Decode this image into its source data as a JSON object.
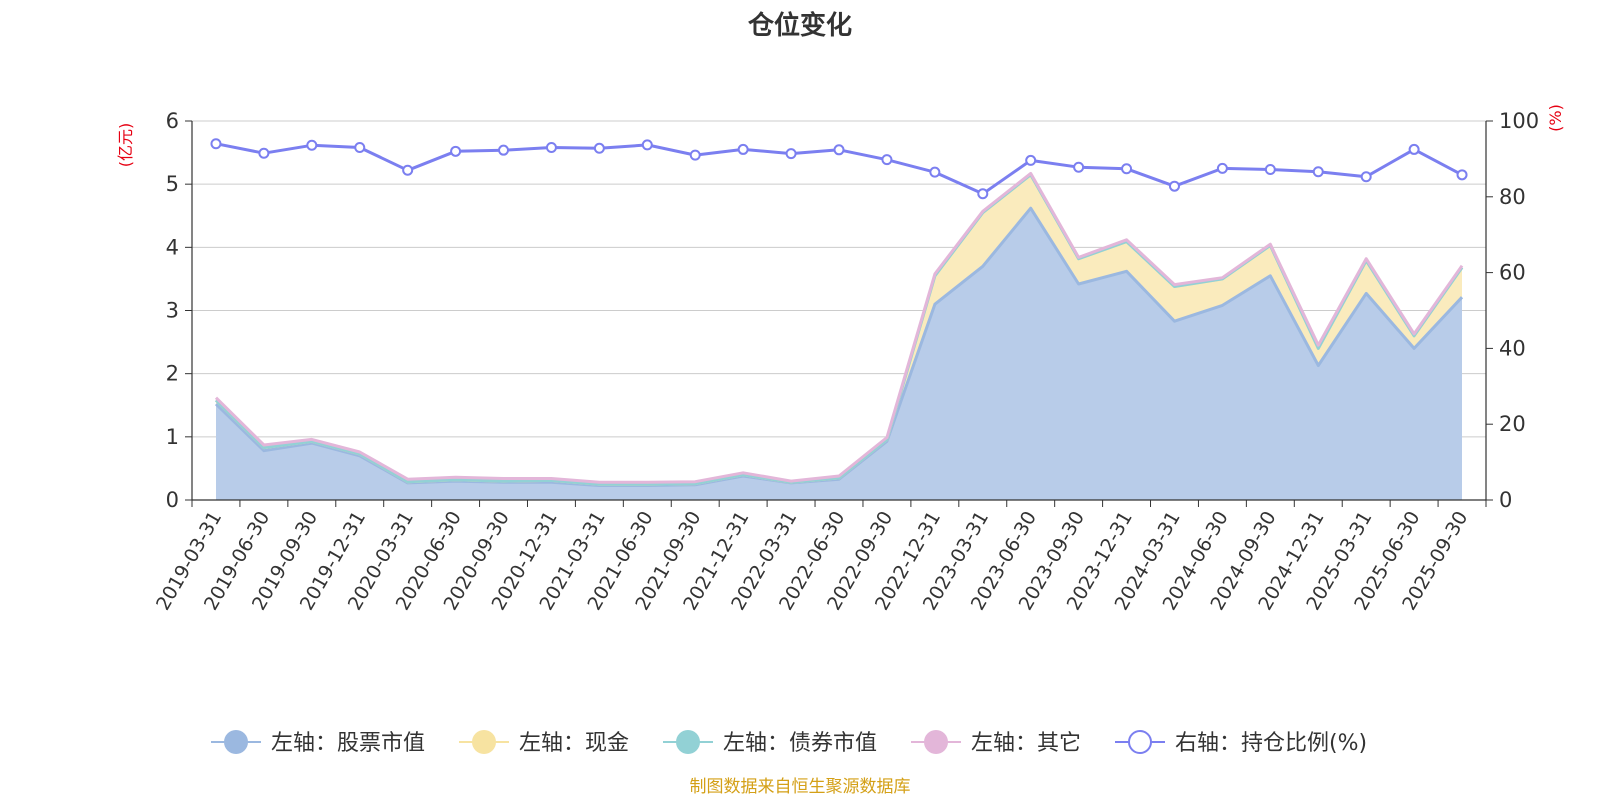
{
  "chart_data": {
    "type": "area",
    "title": "仓位变化",
    "left_axis_unit": "(亿元)",
    "right_axis_unit": "(%)",
    "ylim_left": [
      0,
      6
    ],
    "ylim_right": [
      0,
      100
    ],
    "left_ticks": [
      "0",
      "1",
      "2",
      "3",
      "4",
      "5",
      "6"
    ],
    "right_ticks": [
      "0",
      "20",
      "40",
      "60",
      "80",
      "100"
    ],
    "grid": true,
    "categories": [
      "2019-03-31",
      "2019-06-30",
      "2019-09-30",
      "2019-12-31",
      "2020-03-31",
      "2020-06-30",
      "2020-09-30",
      "2020-12-31",
      "2021-03-31",
      "2021-06-30",
      "2021-09-30",
      "2021-12-31",
      "2022-03-31",
      "2022-06-30",
      "2022-09-30",
      "2022-12-31",
      "2023-03-31",
      "2023-06-30",
      "2023-09-30",
      "2023-12-31",
      "2024-03-31",
      "2024-06-30",
      "2024-09-30",
      "2024-12-31",
      "2025-03-31",
      "2025-06-30",
      "2025-09-30"
    ],
    "series": [
      {
        "name": "左轴：股票市值",
        "axis": "left",
        "stacked": true,
        "color": "#9bb8e0",
        "fill": "#b8cce9",
        "values": [
          1.52,
          0.78,
          0.9,
          0.7,
          0.27,
          0.3,
          0.28,
          0.28,
          0.23,
          0.23,
          0.24,
          0.38,
          0.27,
          0.33,
          0.93,
          3.1,
          3.7,
          4.62,
          3.42,
          3.62,
          2.83,
          3.08,
          3.55,
          2.13,
          3.27,
          2.4,
          3.21
        ]
      },
      {
        "name": "左轴：现金",
        "axis": "left",
        "stacked": true,
        "color": "#f7e3a1",
        "fill": "#faebbd",
        "values": [
          0.06,
          0.05,
          0.03,
          0.03,
          0.02,
          0.02,
          0.02,
          0.03,
          0.02,
          0.02,
          0.02,
          0.02,
          0.01,
          0.02,
          0.03,
          0.45,
          0.85,
          0.53,
          0.4,
          0.47,
          0.55,
          0.42,
          0.48,
          0.27,
          0.52,
          0.2,
          0.47
        ]
      },
      {
        "name": "左轴：债券市值",
        "axis": "left",
        "stacked": true,
        "color": "#92d1d5",
        "fill": "#c4e8ea",
        "values": [
          0,
          0,
          0,
          0,
          0,
          0,
          0,
          0,
          0,
          0,
          0,
          0,
          0,
          0,
          0,
          0,
          0,
          0,
          0,
          0,
          0,
          0,
          0,
          0,
          0,
          0,
          0
        ]
      },
      {
        "name": "左轴：其它",
        "axis": "left",
        "stacked": true,
        "color": "#e3b6d9",
        "fill": "#efd2e8",
        "values": [
          0.04,
          0.04,
          0.03,
          0.03,
          0.04,
          0.04,
          0.04,
          0.03,
          0.03,
          0.03,
          0.03,
          0.03,
          0.02,
          0.03,
          0.03,
          0.03,
          0.02,
          0.02,
          0.02,
          0.03,
          0.03,
          0.02,
          0.02,
          0.05,
          0.03,
          0.03,
          0.03
        ]
      },
      {
        "name": "右轴：持仓比例(%)",
        "axis": "right",
        "stacked": false,
        "color": "#7b7ff0",
        "values": [
          94.0,
          91.5,
          93.6,
          93.0,
          87.0,
          92.0,
          92.3,
          93.0,
          92.8,
          93.7,
          91.0,
          92.5,
          91.4,
          92.4,
          89.8,
          86.5,
          80.8,
          89.6,
          87.8,
          87.4,
          82.8,
          87.5,
          87.2,
          86.6,
          85.3,
          92.5,
          85.8
        ]
      }
    ],
    "source_note": "制图数据来自恒生聚源数据库"
  }
}
